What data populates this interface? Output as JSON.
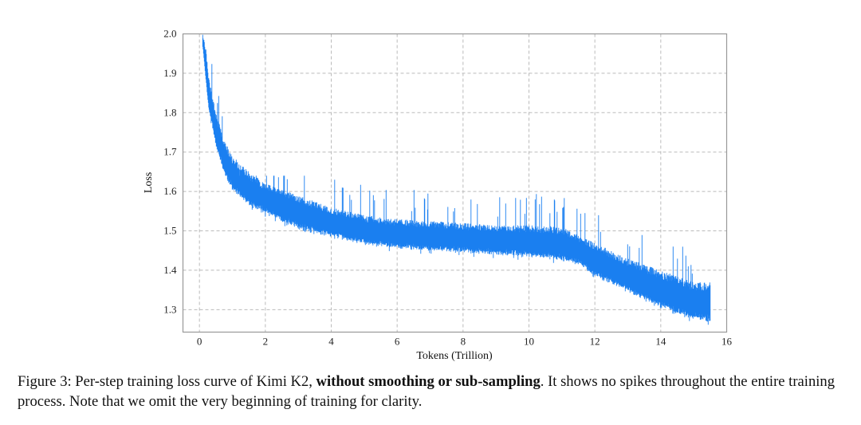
{
  "chart_data": {
    "type": "line",
    "title": "",
    "xlabel": "Tokens (Trillion)",
    "ylabel": "Loss",
    "xlim": [
      -0.5,
      16
    ],
    "ylim": [
      1.243,
      2.0
    ],
    "xticks": [
      0,
      2,
      4,
      6,
      8,
      10,
      12,
      14,
      16
    ],
    "yticks": [
      1.3,
      1.4,
      1.5,
      1.6,
      1.7,
      1.8,
      1.9,
      2.0
    ],
    "grid": true,
    "grid_style": "dashed",
    "series_color": "#1a7ff0",
    "series": [
      {
        "x": [
          0.1,
          0.2,
          0.3,
          0.5,
          0.75,
          1.0,
          1.5,
          2.0,
          3.0,
          4.0,
          5.0,
          6.0,
          7.0,
          8.0,
          9.0,
          10.0,
          11.0,
          11.5,
          12.0,
          13.0,
          14.0,
          15.0,
          15.5
        ],
        "low": [
          1.97,
          1.88,
          1.8,
          1.72,
          1.65,
          1.61,
          1.57,
          1.55,
          1.51,
          1.49,
          1.47,
          1.46,
          1.455,
          1.45,
          1.445,
          1.44,
          1.43,
          1.42,
          1.39,
          1.35,
          1.31,
          1.28,
          1.275
        ],
        "high": [
          2.0,
          1.96,
          1.88,
          1.8,
          1.73,
          1.69,
          1.65,
          1.62,
          1.59,
          1.56,
          1.54,
          1.53,
          1.525,
          1.52,
          1.515,
          1.515,
          1.51,
          1.49,
          1.47,
          1.43,
          1.4,
          1.37,
          1.37
        ],
        "max_spike": 1.64
      }
    ]
  },
  "caption": {
    "prefix": "Figure 3: Per-step training loss curve of Kimi K2, ",
    "bold": "without smoothing or sub-sampling",
    "suffix": ". It shows no spikes throughout the entire training process. Note that we omit the very beginning of training for clarity."
  }
}
